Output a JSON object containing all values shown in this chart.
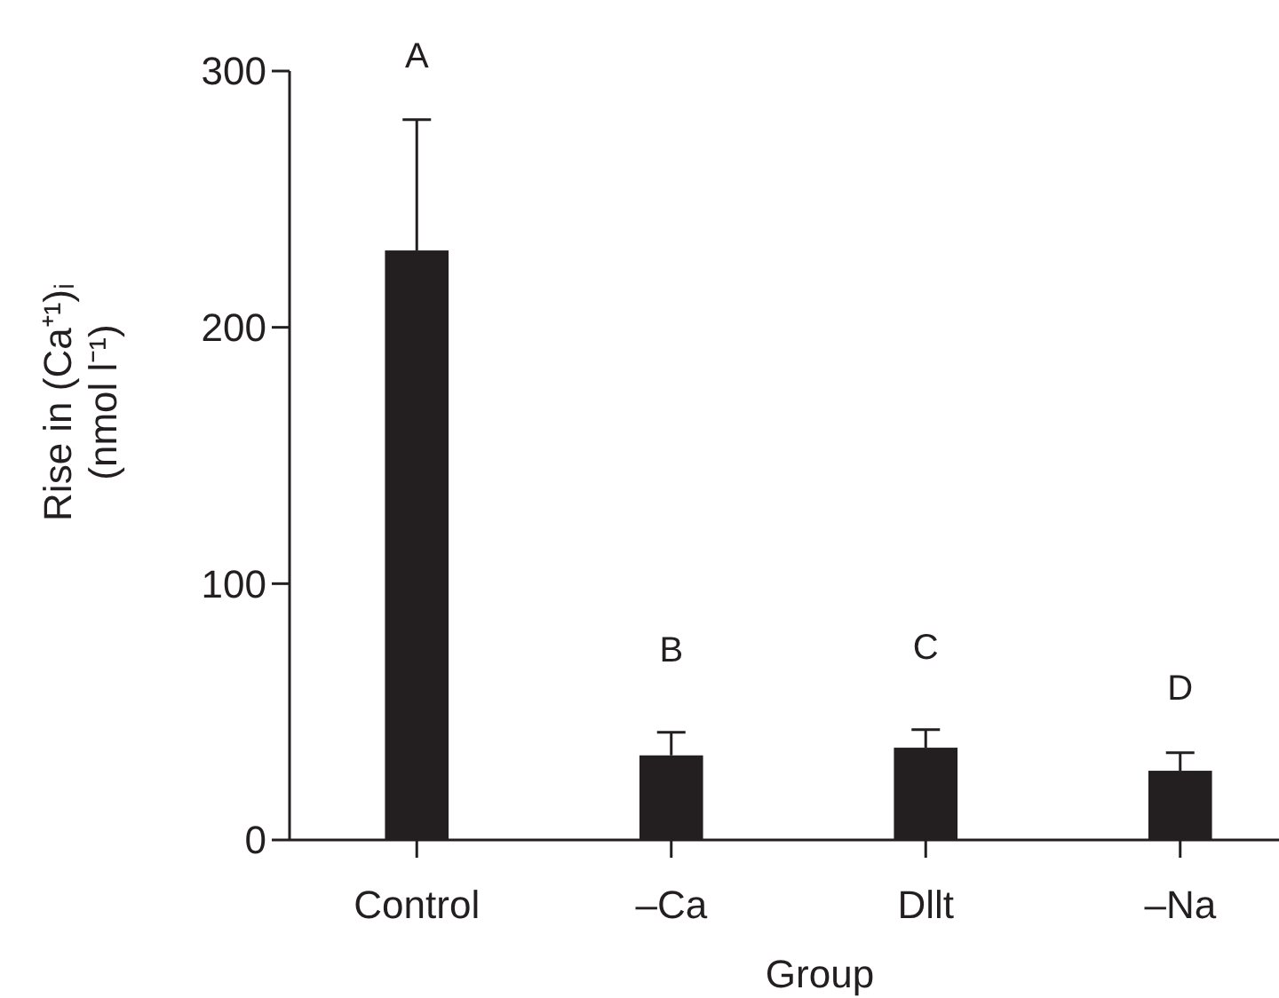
{
  "chart_data": {
    "type": "bar",
    "xlabel": "Group",
    "ylabel": "Rise in (Ca⁺¹)ᵢ\n(nmol l⁻¹)",
    "categories": [
      "Control",
      "–Ca",
      "Dllt",
      "–Na"
    ],
    "values": [
      230,
      33,
      36,
      27
    ],
    "color": "#231f20",
    "errors": [
      [
        230,
        281
      ],
      [
        33,
        42
      ],
      [
        36,
        43
      ],
      [
        27,
        34
      ]
    ],
    "ylim": [
      0,
      300
    ],
    "yticks": [
      0,
      100,
      200,
      300
    ],
    "grid": false,
    "annotations": [
      "A",
      "B",
      "C",
      "D"
    ]
  }
}
